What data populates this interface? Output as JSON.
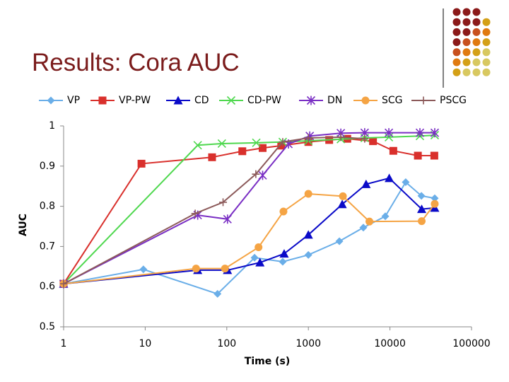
{
  "chart_data": {
    "type": "line",
    "title": "Results: Cora AUC",
    "x_label": "Time (s)",
    "y_label": "AUC",
    "xscale": "log",
    "xlim": [
      1,
      100000
    ],
    "xticks": [
      1,
      10,
      100,
      1000,
      10000,
      100000
    ],
    "ylim": [
      0.5,
      1
    ],
    "yticks": [
      0.5,
      0.6,
      0.7,
      0.8,
      0.9,
      1
    ],
    "grid": false,
    "legend": "top",
    "series": [
      {
        "name": "VP",
        "color": "#6aaee8",
        "marker": "diamond",
        "x": [
          1,
          9.5,
          77,
          219,
          485,
          1000,
          2400,
          4720,
          8770,
          15600,
          24300,
          35400
        ],
        "values": [
          0.607,
          0.643,
          0.582,
          0.672,
          0.662,
          0.679,
          0.713,
          0.747,
          0.775,
          0.86,
          0.826,
          0.82
        ]
      },
      {
        "name": "VP-PW",
        "color": "#d9302c",
        "marker": "square",
        "x": [
          1,
          9,
          66,
          155,
          275,
          465,
          1000,
          1800,
          3000,
          6200,
          11000,
          22000,
          35000
        ],
        "values": [
          0.607,
          0.906,
          0.922,
          0.937,
          0.945,
          0.951,
          0.96,
          0.965,
          0.968,
          0.962,
          0.938,
          0.926,
          0.926
        ]
      },
      {
        "name": "CD",
        "color": "#0a0ac8",
        "marker": "triangle",
        "x": [
          1,
          44,
          102,
          255,
          505,
          1000,
          2600,
          5100,
          9800,
          24500,
          35400
        ],
        "values": [
          0.607,
          0.641,
          0.641,
          0.66,
          0.682,
          0.729,
          0.805,
          0.855,
          0.87,
          0.793,
          0.796
        ]
      },
      {
        "name": "CD-PW",
        "color": "#4fd84f",
        "marker": "x",
        "x": [
          1,
          44,
          87,
          230,
          485,
          1000,
          2500,
          4900,
          9700,
          23300,
          35400
        ],
        "values": [
          0.607,
          0.952,
          0.956,
          0.958,
          0.96,
          0.963,
          0.967,
          0.97,
          0.972,
          0.975,
          0.977
        ]
      },
      {
        "name": "DN",
        "color": "#7a2fc4",
        "marker": "star",
        "x": [
          1,
          44,
          102,
          275,
          570,
          1040,
          2500,
          4900,
          9700,
          23300,
          35400
        ],
        "values": [
          0.607,
          0.778,
          0.768,
          0.877,
          0.955,
          0.975,
          0.982,
          0.983,
          0.983,
          0.983,
          0.983
        ]
      },
      {
        "name": "SCG",
        "color": "#f5a444",
        "marker": "circle",
        "x": [
          1,
          42,
          95,
          245,
          495,
          1000,
          2650,
          5600,
          24500,
          35400
        ],
        "values": [
          0.607,
          0.645,
          0.645,
          0.698,
          0.787,
          0.831,
          0.825,
          0.762,
          0.763,
          0.806
        ]
      },
      {
        "name": "PSCG",
        "color": "#8c5a5a",
        "marker": "plus",
        "x": [
          1,
          41,
          90,
          227,
          485,
          1000,
          2500,
          4900
        ],
        "values": [
          0.607,
          0.782,
          0.81,
          0.88,
          0.96,
          0.97,
          0.972,
          0.968
        ]
      }
    ]
  }
}
